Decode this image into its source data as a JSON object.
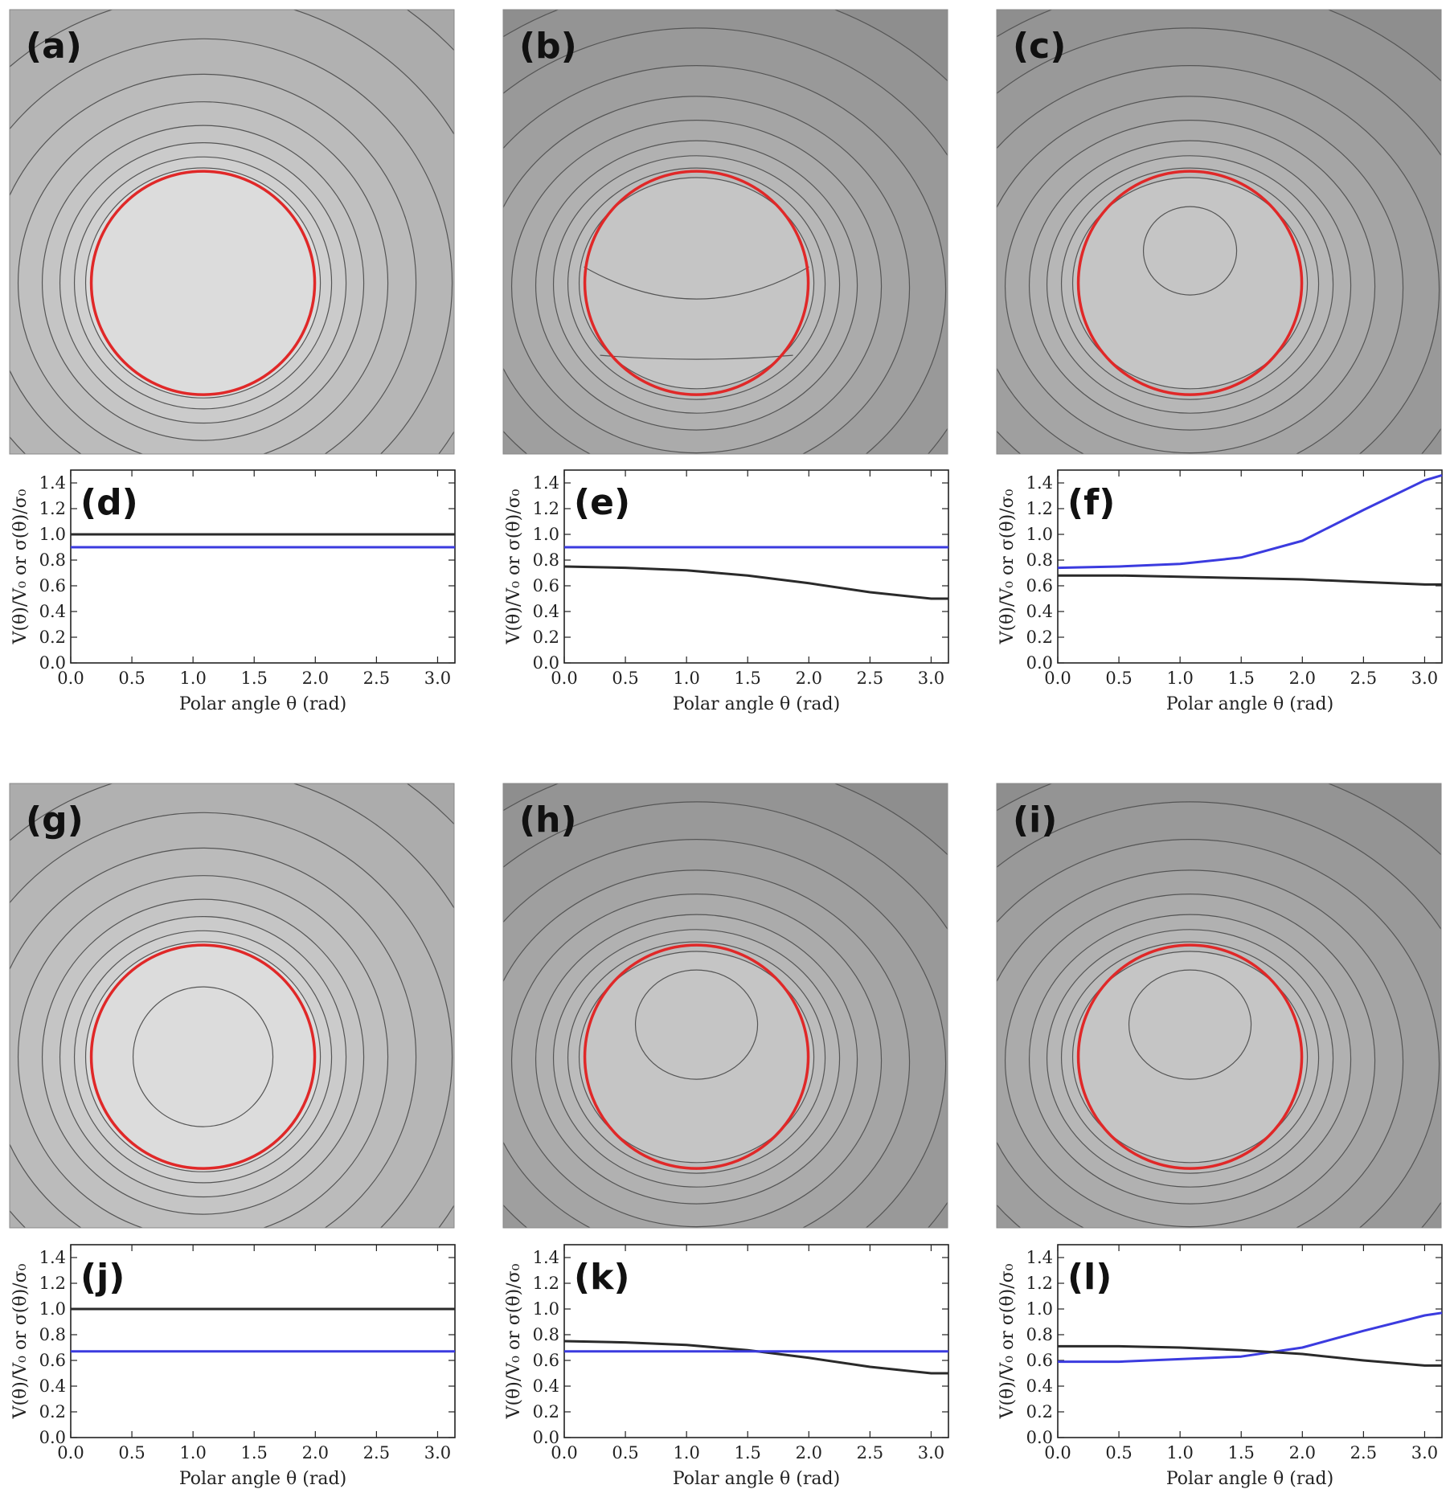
{
  "figure": {
    "colors": {
      "potential_line": "#2a2a2a",
      "charge_line": "#3b3bdf",
      "sphere_outline": "#e02828",
      "contour_line": "#555555"
    },
    "contour_panels": [
      {
        "label": "(a)",
        "shades": [
          "#a8a8a8",
          "#acacac",
          "#b1b1b1",
          "#b6b6b6",
          "#bbbbbb",
          "#c0c0c0",
          "#c5c5c5",
          "#cbcbcb",
          "#d0d0d0",
          "#dcdcdc"
        ],
        "inner_contours": []
      },
      {
        "label": "(b)",
        "shades": [
          "#8e8e8e",
          "#949494",
          "#999999",
          "#9f9f9f",
          "#a5a5a5",
          "#ababab",
          "#b1b1b1",
          "#b7b7b7",
          "#bcbcbc",
          "#c5c5c5"
        ],
        "inner_contours": [
          "flat_top",
          "flat_bottom"
        ]
      },
      {
        "label": "(c)",
        "shades": [
          "#8e8e8e",
          "#949494",
          "#999999",
          "#9f9f9f",
          "#a5a5a5",
          "#ababab",
          "#b1b1b1",
          "#b7b7b7",
          "#bcbcbc",
          "#c5c5c5"
        ],
        "inner_contours": [
          "small_oval"
        ]
      },
      {
        "label": "(g)",
        "shades": [
          "#a8a8a8",
          "#acacac",
          "#b1b1b1",
          "#b6b6b6",
          "#bbbbbb",
          "#c0c0c0",
          "#c5c5c5",
          "#cbcbcb",
          "#d0d0d0",
          "#dcdcdc"
        ],
        "inner_contours": [
          "large_oval"
        ]
      },
      {
        "label": "(h)",
        "shades": [
          "#8e8e8e",
          "#949494",
          "#999999",
          "#9f9f9f",
          "#a5a5a5",
          "#ababab",
          "#b1b1b1",
          "#b7b7b7",
          "#bcbcbc",
          "#c5c5c5"
        ],
        "inner_contours": [
          "medium_oval"
        ]
      },
      {
        "label": "(i)",
        "shades": [
          "#8e8e8e",
          "#949494",
          "#999999",
          "#9f9f9f",
          "#a5a5a5",
          "#ababab",
          "#b1b1b1",
          "#b7b7b7",
          "#bcbcbc",
          "#c5c5c5"
        ],
        "inner_contours": [
          "medium_oval"
        ]
      }
    ]
  },
  "chart_data": [
    {
      "type": "line",
      "panel": "(d)",
      "xlabel": "Polar angle θ (rad)",
      "ylabel": "V(θ)/V₀  or  σ(θ)/σ₀",
      "xlim": [
        0,
        3.1416
      ],
      "ylim": [
        0,
        1.5
      ],
      "xticks": [
        0.0,
        0.5,
        1.0,
        1.5,
        2.0,
        2.5,
        3.0
      ],
      "yticks": [
        0.0,
        0.2,
        0.4,
        0.6,
        0.8,
        1.0,
        1.2,
        1.4
      ],
      "series": [
        {
          "color": "#2a2a2a",
          "x": [
            0,
            0.5,
            1,
            1.5,
            2,
            2.5,
            3,
            3.1416
          ],
          "y": [
            1.0,
            1.0,
            1.0,
            1.0,
            1.0,
            1.0,
            1.0,
            1.0
          ]
        },
        {
          "color": "#3b3bdf",
          "x": [
            0,
            0.5,
            1,
            1.5,
            2,
            2.5,
            3,
            3.1416
          ],
          "y": [
            0.9,
            0.9,
            0.9,
            0.9,
            0.9,
            0.9,
            0.9,
            0.9
          ]
        }
      ]
    },
    {
      "type": "line",
      "panel": "(e)",
      "xlabel": "Polar angle θ (rad)",
      "ylabel": "V(θ)/V₀  or  σ(θ)/σ₀",
      "xlim": [
        0,
        3.1416
      ],
      "ylim": [
        0,
        1.5
      ],
      "xticks": [
        0.0,
        0.5,
        1.0,
        1.5,
        2.0,
        2.5,
        3.0
      ],
      "yticks": [
        0.0,
        0.2,
        0.4,
        0.6,
        0.8,
        1.0,
        1.2,
        1.4
      ],
      "series": [
        {
          "color": "#3b3bdf",
          "x": [
            0,
            0.5,
            1,
            1.5,
            2,
            2.5,
            3,
            3.1416
          ],
          "y": [
            0.9,
            0.9,
            0.9,
            0.9,
            0.9,
            0.9,
            0.9,
            0.9
          ]
        },
        {
          "color": "#2a2a2a",
          "x": [
            0,
            0.5,
            1,
            1.5,
            2,
            2.5,
            3,
            3.1416
          ],
          "y": [
            0.75,
            0.74,
            0.72,
            0.68,
            0.62,
            0.55,
            0.5,
            0.5
          ]
        }
      ]
    },
    {
      "type": "line",
      "panel": "(f)",
      "xlabel": "Polar angle θ (rad)",
      "ylabel": "V(θ)/V₀  or  σ(θ)/σ₀",
      "xlim": [
        0,
        3.1416
      ],
      "ylim": [
        0,
        1.5
      ],
      "xticks": [
        0.0,
        0.5,
        1.0,
        1.5,
        2.0,
        2.5,
        3.0
      ],
      "yticks": [
        0.0,
        0.2,
        0.4,
        0.6,
        0.8,
        1.0,
        1.2,
        1.4
      ],
      "series": [
        {
          "color": "#3b3bdf",
          "x": [
            0,
            0.5,
            1,
            1.5,
            2,
            2.5,
            3,
            3.1416
          ],
          "y": [
            0.74,
            0.75,
            0.77,
            0.82,
            0.95,
            1.19,
            1.42,
            1.46
          ]
        },
        {
          "color": "#2a2a2a",
          "x": [
            0,
            0.5,
            1,
            1.5,
            2,
            2.5,
            3,
            3.1416
          ],
          "y": [
            0.68,
            0.68,
            0.67,
            0.66,
            0.65,
            0.63,
            0.61,
            0.61
          ]
        }
      ]
    },
    {
      "type": "line",
      "panel": "(j)",
      "xlabel": "Polar angle θ (rad)",
      "ylabel": "V(θ)/V₀  or  σ(θ)/σ₀",
      "xlim": [
        0,
        3.1416
      ],
      "ylim": [
        0,
        1.5
      ],
      "xticks": [
        0.0,
        0.5,
        1.0,
        1.5,
        2.0,
        2.5,
        3.0
      ],
      "yticks": [
        0.0,
        0.2,
        0.4,
        0.6,
        0.8,
        1.0,
        1.2,
        1.4
      ],
      "series": [
        {
          "color": "#2a2a2a",
          "x": [
            0,
            0.5,
            1,
            1.5,
            2,
            2.5,
            3,
            3.1416
          ],
          "y": [
            1.0,
            1.0,
            1.0,
            1.0,
            1.0,
            1.0,
            1.0,
            1.0
          ]
        },
        {
          "color": "#3b3bdf",
          "x": [
            0,
            0.5,
            1,
            1.5,
            2,
            2.5,
            3,
            3.1416
          ],
          "y": [
            0.67,
            0.67,
            0.67,
            0.67,
            0.67,
            0.67,
            0.67,
            0.67
          ]
        }
      ]
    },
    {
      "type": "line",
      "panel": "(k)",
      "xlabel": "Polar angle θ (rad)",
      "ylabel": "V(θ)/V₀  or  σ(θ)/σ₀",
      "xlim": [
        0,
        3.1416
      ],
      "ylim": [
        0,
        1.5
      ],
      "xticks": [
        0.0,
        0.5,
        1.0,
        1.5,
        2.0,
        2.5,
        3.0
      ],
      "yticks": [
        0.0,
        0.2,
        0.4,
        0.6,
        0.8,
        1.0,
        1.2,
        1.4
      ],
      "series": [
        {
          "color": "#2a2a2a",
          "x": [
            0,
            0.5,
            1,
            1.5,
            2,
            2.5,
            3,
            3.1416
          ],
          "y": [
            0.75,
            0.74,
            0.72,
            0.68,
            0.62,
            0.55,
            0.5,
            0.5
          ]
        },
        {
          "color": "#3b3bdf",
          "x": [
            0,
            0.5,
            1,
            1.5,
            2,
            2.5,
            3,
            3.1416
          ],
          "y": [
            0.67,
            0.67,
            0.67,
            0.67,
            0.67,
            0.67,
            0.67,
            0.67
          ]
        }
      ]
    },
    {
      "type": "line",
      "panel": "(l)",
      "xlabel": "Polar angle θ (rad)",
      "ylabel": "V(θ)/V₀  or  σ(θ)/σ₀",
      "xlim": [
        0,
        3.1416
      ],
      "ylim": [
        0,
        1.5
      ],
      "xticks": [
        0.0,
        0.5,
        1.0,
        1.5,
        2.0,
        2.5,
        3.0
      ],
      "yticks": [
        0.0,
        0.2,
        0.4,
        0.6,
        0.8,
        1.0,
        1.2,
        1.4
      ],
      "series": [
        {
          "color": "#3b3bdf",
          "x": [
            0,
            0.5,
            1,
            1.5,
            2,
            2.5,
            3,
            3.1416
          ],
          "y": [
            0.59,
            0.59,
            0.61,
            0.63,
            0.7,
            0.83,
            0.95,
            0.97
          ]
        },
        {
          "color": "#2a2a2a",
          "x": [
            0,
            0.5,
            1,
            1.5,
            2,
            2.5,
            3,
            3.1416
          ],
          "y": [
            0.71,
            0.71,
            0.7,
            0.68,
            0.65,
            0.6,
            0.56,
            0.56
          ]
        }
      ]
    }
  ]
}
